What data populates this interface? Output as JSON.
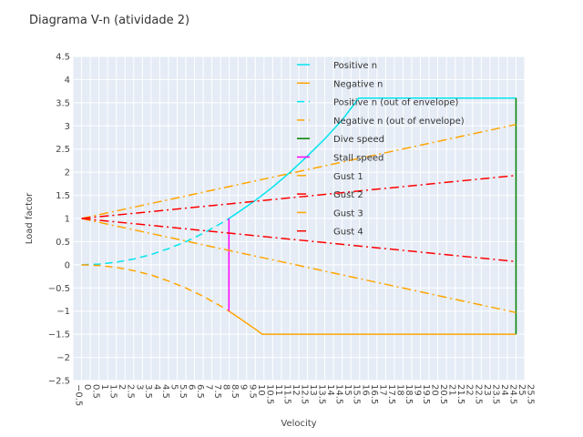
{
  "chart_data": {
    "type": "line",
    "title": "Diagrama V-n (atividade 2)",
    "xlabel": "Velocity",
    "ylabel": "Load factor",
    "xlim": [
      -0.5,
      25.5
    ],
    "ylim": [
      -2.5,
      4.5
    ],
    "x_tick_labels": [
      "−0.5",
      "0",
      "0.5",
      "1",
      "1.5",
      "2",
      "2.5",
      "3",
      "3.5",
      "4",
      "4.5",
      "5",
      "5.5",
      "6",
      "6.5",
      "7",
      "7.5",
      "8",
      "8.5",
      "9",
      "9.5",
      "10",
      "10.5",
      "11",
      "11.5",
      "12",
      "12.5",
      "13",
      "13.5",
      "14",
      "14.5",
      "15",
      "15.5",
      "16",
      "16.5",
      "17",
      "17.5",
      "18",
      "18.5",
      "19",
      "19.5",
      "20",
      "20.5",
      "21",
      "21.5",
      "22",
      "22.5",
      "23",
      "23.5",
      "24",
      "24.5",
      "25",
      "25.5"
    ],
    "y_tick_labels": [
      "−2.5",
      "−2",
      "−1.5",
      "−1",
      "−0.5",
      "0",
      "0.5",
      "1",
      "1.5",
      "2",
      "2.5",
      "3",
      "3.5",
      "4",
      "4.5"
    ],
    "x_ticks": [
      -0.5,
      0,
      0.5,
      1,
      1.5,
      2,
      2.5,
      3,
      3.5,
      4,
      4.5,
      5,
      5.5,
      6,
      6.5,
      7,
      7.5,
      8,
      8.5,
      9,
      9.5,
      10,
      10.5,
      11,
      11.5,
      12,
      12.5,
      13,
      13.5,
      14,
      14.5,
      15,
      15.5,
      16,
      16.5,
      17,
      17.5,
      18,
      18.5,
      19,
      19.5,
      20,
      20.5,
      21,
      21.5,
      22,
      22.5,
      23,
      23.5,
      24,
      24.5,
      25,
      25.5
    ],
    "y_ticks": [
      -2.5,
      -2,
      -1.5,
      -1,
      -0.5,
      0,
      0.5,
      1,
      1.5,
      2,
      2.5,
      3,
      3.5,
      4,
      4.5
    ],
    "grid": true,
    "legend_position": "top-center",
    "series": [
      {
        "name": "Positive n",
        "color": "#00e5ee",
        "dash": "solid",
        "x": [
          8.48,
          9,
          10,
          11,
          12,
          13,
          14,
          15,
          15.95,
          16,
          17,
          18,
          19,
          20,
          21,
          22,
          23,
          24,
          25
        ],
        "y": [
          1,
          1.13,
          1.39,
          1.68,
          2.0,
          2.35,
          2.72,
          3.13,
          3.6,
          3.6,
          3.6,
          3.6,
          3.6,
          3.6,
          3.6,
          3.6,
          3.6,
          3.6,
          3.6
        ]
      },
      {
        "name": "Negative n",
        "color": "#ffa500",
        "dash": "solid",
        "x": [
          8.48,
          9,
          10,
          10.4,
          11,
          12,
          13,
          14,
          15,
          16,
          17,
          18,
          19,
          20,
          21,
          22,
          23,
          24,
          25
        ],
        "y": [
          -1,
          -1.13,
          -1.39,
          -1.5,
          -1.5,
          -1.5,
          -1.5,
          -1.5,
          -1.5,
          -1.5,
          -1.5,
          -1.5,
          -1.5,
          -1.5,
          -1.5,
          -1.5,
          -1.5,
          -1.5,
          -1.5
        ]
      },
      {
        "name": "Positive n (out of envelope)",
        "color": "#00e5ee",
        "dash": "8,5",
        "x": [
          0,
          1,
          2,
          3,
          4,
          5,
          6,
          7,
          8,
          8.48
        ],
        "y": [
          0,
          0.014,
          0.056,
          0.125,
          0.22,
          0.35,
          0.5,
          0.68,
          0.89,
          1.0
        ]
      },
      {
        "name": "Negative n (out of envelope)",
        "color": "#ffa500",
        "dash": "8,5",
        "x": [
          0,
          1,
          2,
          3,
          4,
          5,
          6,
          7,
          8,
          8.48
        ],
        "y": [
          0,
          -0.014,
          -0.056,
          -0.125,
          -0.22,
          -0.35,
          -0.5,
          -0.68,
          -0.89,
          -1.0
        ]
      },
      {
        "name": "Dive speed",
        "color": "#008000",
        "dash": "solid",
        "x": [
          25,
          25
        ],
        "y": [
          -1.5,
          3.6
        ]
      },
      {
        "name": "Stall speed",
        "color": "#ff00ff",
        "dash": "solid",
        "x": [
          8.48,
          8.48
        ],
        "y": [
          -1,
          1
        ]
      },
      {
        "name": "Gust 1",
        "color": "#ffa500",
        "dash": "10,4,2,4",
        "x": [
          0,
          25
        ],
        "y": [
          1,
          3.03
        ]
      },
      {
        "name": "Gust 2",
        "color": "#ff0000",
        "dash": "10,4,2,4",
        "x": [
          0,
          25
        ],
        "y": [
          1,
          1.93
        ]
      },
      {
        "name": "Gust 3",
        "color": "#ffa500",
        "dash": "10,4,2,4",
        "x": [
          0,
          25
        ],
        "y": [
          1,
          -1.03
        ]
      },
      {
        "name": "Gust 4",
        "color": "#ff0000",
        "dash": "10,4,2,4",
        "x": [
          0,
          25
        ],
        "y": [
          1,
          0.07
        ]
      }
    ]
  },
  "colors": {
    "plot_bg": "#e5ecf6",
    "grid": "#ffffff"
  }
}
